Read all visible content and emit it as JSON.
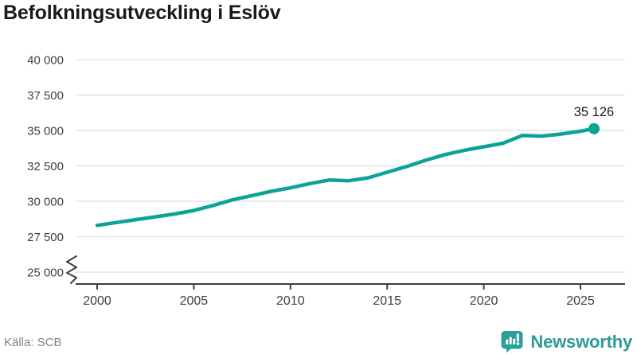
{
  "title": "Befolkningsutveckling i Eslöv",
  "source": "Källa: SCB",
  "logo": {
    "text": "Newsworthy",
    "icon": "bar-chart-speech-bubble"
  },
  "colors": {
    "background": "#ffffff",
    "line": "#0aa396",
    "grid": "#e4e4e4",
    "axis": "#3f3f3f",
    "tick_label": "#3f3f3f",
    "title_text": "#1a1a1a",
    "end_label_text": "#1a1a1a",
    "source_text": "#84848e",
    "logo_teal": "#2f9a96"
  },
  "chart_data": {
    "type": "line",
    "title": "Befolkningsutveckling i Eslöv",
    "xlabel": "",
    "ylabel": "",
    "x": [
      2000,
      2001,
      2002,
      2003,
      2004,
      2005,
      2006,
      2007,
      2008,
      2009,
      2010,
      2011,
      2012,
      2013,
      2014,
      2015,
      2016,
      2017,
      2018,
      2019,
      2020,
      2021,
      2022,
      2023,
      2024,
      2025,
      2025.7
    ],
    "values": [
      28300,
      28500,
      28700,
      28900,
      29100,
      29350,
      29700,
      30100,
      30400,
      30700,
      30950,
      31250,
      31500,
      31450,
      31650,
      32050,
      32450,
      32900,
      33300,
      33600,
      33850,
      34100,
      34650,
      34600,
      34750,
      34950,
      35126
    ],
    "values_note": "values estimated from pixel positions against gridlines",
    "end_value": 35126,
    "end_label": "35 126",
    "ylim": [
      25000,
      40000
    ],
    "ytick_values": [
      25000,
      27500,
      30000,
      32500,
      35000,
      37500,
      40000
    ],
    "ytick_labels": [
      "25 000",
      "27 500",
      "30 000",
      "32 500",
      "35 000",
      "37 500",
      "40 000"
    ],
    "xtick_values": [
      2000,
      2005,
      2010,
      2015,
      2020,
      2025
    ],
    "xtick_labels": [
      "2000",
      "2005",
      "2010",
      "2015",
      "2020",
      "2025"
    ],
    "y_axis_break": true,
    "grid": "horizontal-only",
    "legend": "none"
  }
}
